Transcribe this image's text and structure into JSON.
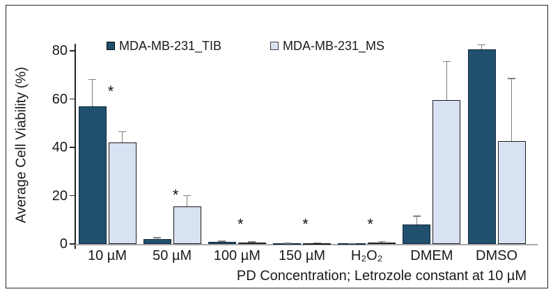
{
  "chart_data": {
    "type": "bar",
    "title": "",
    "categories": [
      "10 µM",
      "50 µM",
      "100 µM",
      "150 µM",
      "H₂O₂",
      "DMEM",
      "DMSO"
    ],
    "series": [
      {
        "name": "MDA-MB-231_TIB",
        "color": "#21506F",
        "border_color": "#12283a",
        "values": [
          57,
          2,
          0.8,
          0.2,
          0.1,
          8,
          80.5
        ],
        "errors_plus": [
          11,
          0.6,
          0.4,
          0.15,
          0.1,
          3.5,
          2
        ]
      },
      {
        "name": "MDA-MB-231_MS",
        "color": "#D9E2F3",
        "border_color": "#1a1a1a",
        "values": [
          42,
          15.5,
          0.5,
          0.3,
          0.7,
          59.5,
          42.5
        ],
        "errors_plus": [
          4.5,
          4.5,
          0.3,
          0.2,
          0.3,
          16,
          26
        ]
      }
    ],
    "xlabel": "PD Concentration; Letrozole constant at 10 µM",
    "ylabel": "Average Cell Viability (%)",
    "ylim": [
      0,
      80
    ],
    "yticks": [
      "0",
      "20",
      "40",
      "60",
      "80"
    ],
    "ytick_values": [
      0,
      20,
      40,
      60,
      80
    ],
    "legend_position": "top",
    "grid": false,
    "error_bar_color": "#7f7f7f",
    "annotations": [
      {
        "text": "*",
        "category": "10 µM",
        "y": 64
      },
      {
        "text": "*",
        "category": "50 µM",
        "y": 21
      },
      {
        "text": "*",
        "category": "100 µM",
        "y": 9
      },
      {
        "text": "*",
        "category": "150 µM",
        "y": 9
      },
      {
        "text": "*",
        "category": "H₂O₂",
        "y": 9
      }
    ]
  }
}
